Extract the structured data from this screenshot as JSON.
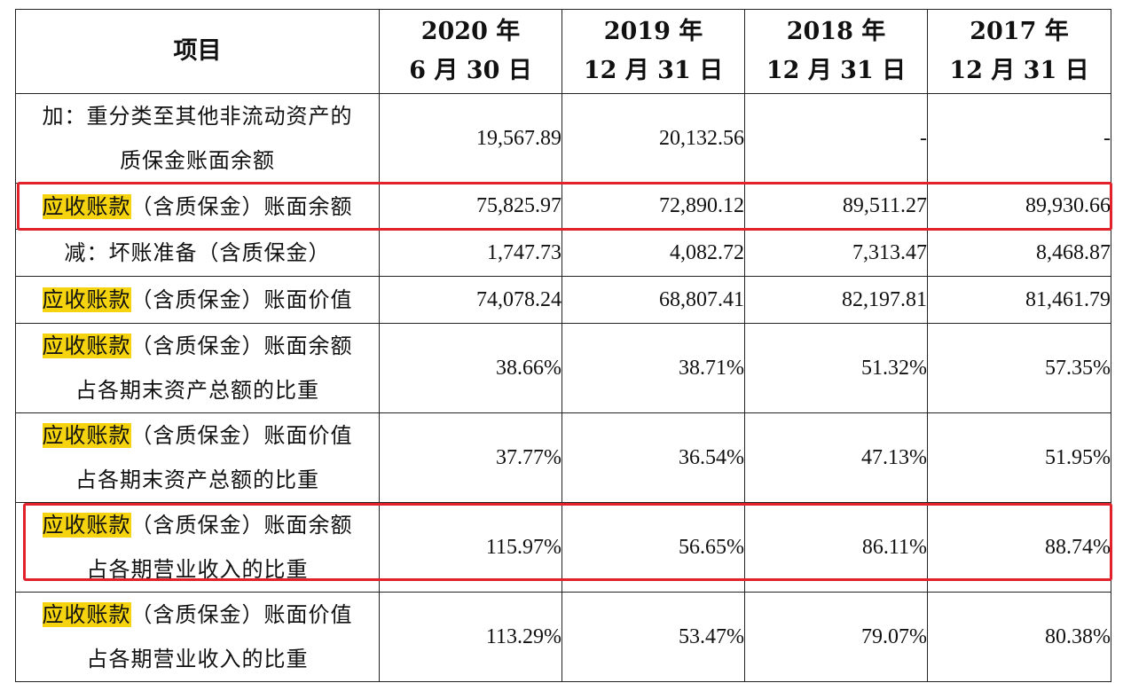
{
  "header": {
    "item": "项目",
    "columns": [
      {
        "year": "2020 年",
        "date": "6 月 30 日"
      },
      {
        "year": "2019 年",
        "date": "12 月 31 日"
      },
      {
        "year": "2018 年",
        "date": "12 月 31 日"
      },
      {
        "year": "2017 年",
        "date": "12 月 31 日"
      }
    ]
  },
  "rows": [
    {
      "label_line1": "加：重分类至其他非流动资产的",
      "label_line2": "质保金账面余额",
      "values": [
        "19,567.89",
        "20,132.56",
        "-",
        "-"
      ]
    },
    {
      "label_hl": "应收账款",
      "label_rest": "（含质保金）账面余额",
      "values": [
        "75,825.97",
        "72,890.12",
        "89,511.27",
        "89,930.66"
      ],
      "boxed": true
    },
    {
      "label_line1": "减：坏账准备（含质保金）",
      "values": [
        "1,747.73",
        "4,082.72",
        "7,313.47",
        "8,468.87"
      ]
    },
    {
      "label_hl": "应收账款",
      "label_rest": "（含质保金）账面价值",
      "values": [
        "74,078.24",
        "68,807.41",
        "82,197.81",
        "81,461.79"
      ]
    },
    {
      "label_hl": "应收账款",
      "label_rest": "（含质保金）账面余额",
      "label_line2": "占各期末资产总额的比重",
      "values": [
        "38.66%",
        "38.71%",
        "51.32%",
        "57.35%"
      ]
    },
    {
      "label_hl": "应收账款",
      "label_rest": "（含质保金）账面价值",
      "label_line2": "占各期末资产总额的比重",
      "values": [
        "37.77%",
        "36.54%",
        "47.13%",
        "51.95%"
      ]
    },
    {
      "label_hl": "应收账款",
      "label_rest": "（含质保金）账面余额",
      "label_line2": "占各期营业收入的比重",
      "values": [
        "115.97%",
        "56.65%",
        "86.11%",
        "88.74%"
      ],
      "boxed": true
    },
    {
      "label_hl": "应收账款",
      "label_rest": "（含质保金）账面价值",
      "label_line2": "占各期营业收入的比重",
      "values": [
        "113.29%",
        "53.47%",
        "79.07%",
        "80.38%"
      ]
    }
  ],
  "colors": {
    "highlight": "#f5d40f",
    "box_border": "#e2222a",
    "grid": "#222222"
  }
}
